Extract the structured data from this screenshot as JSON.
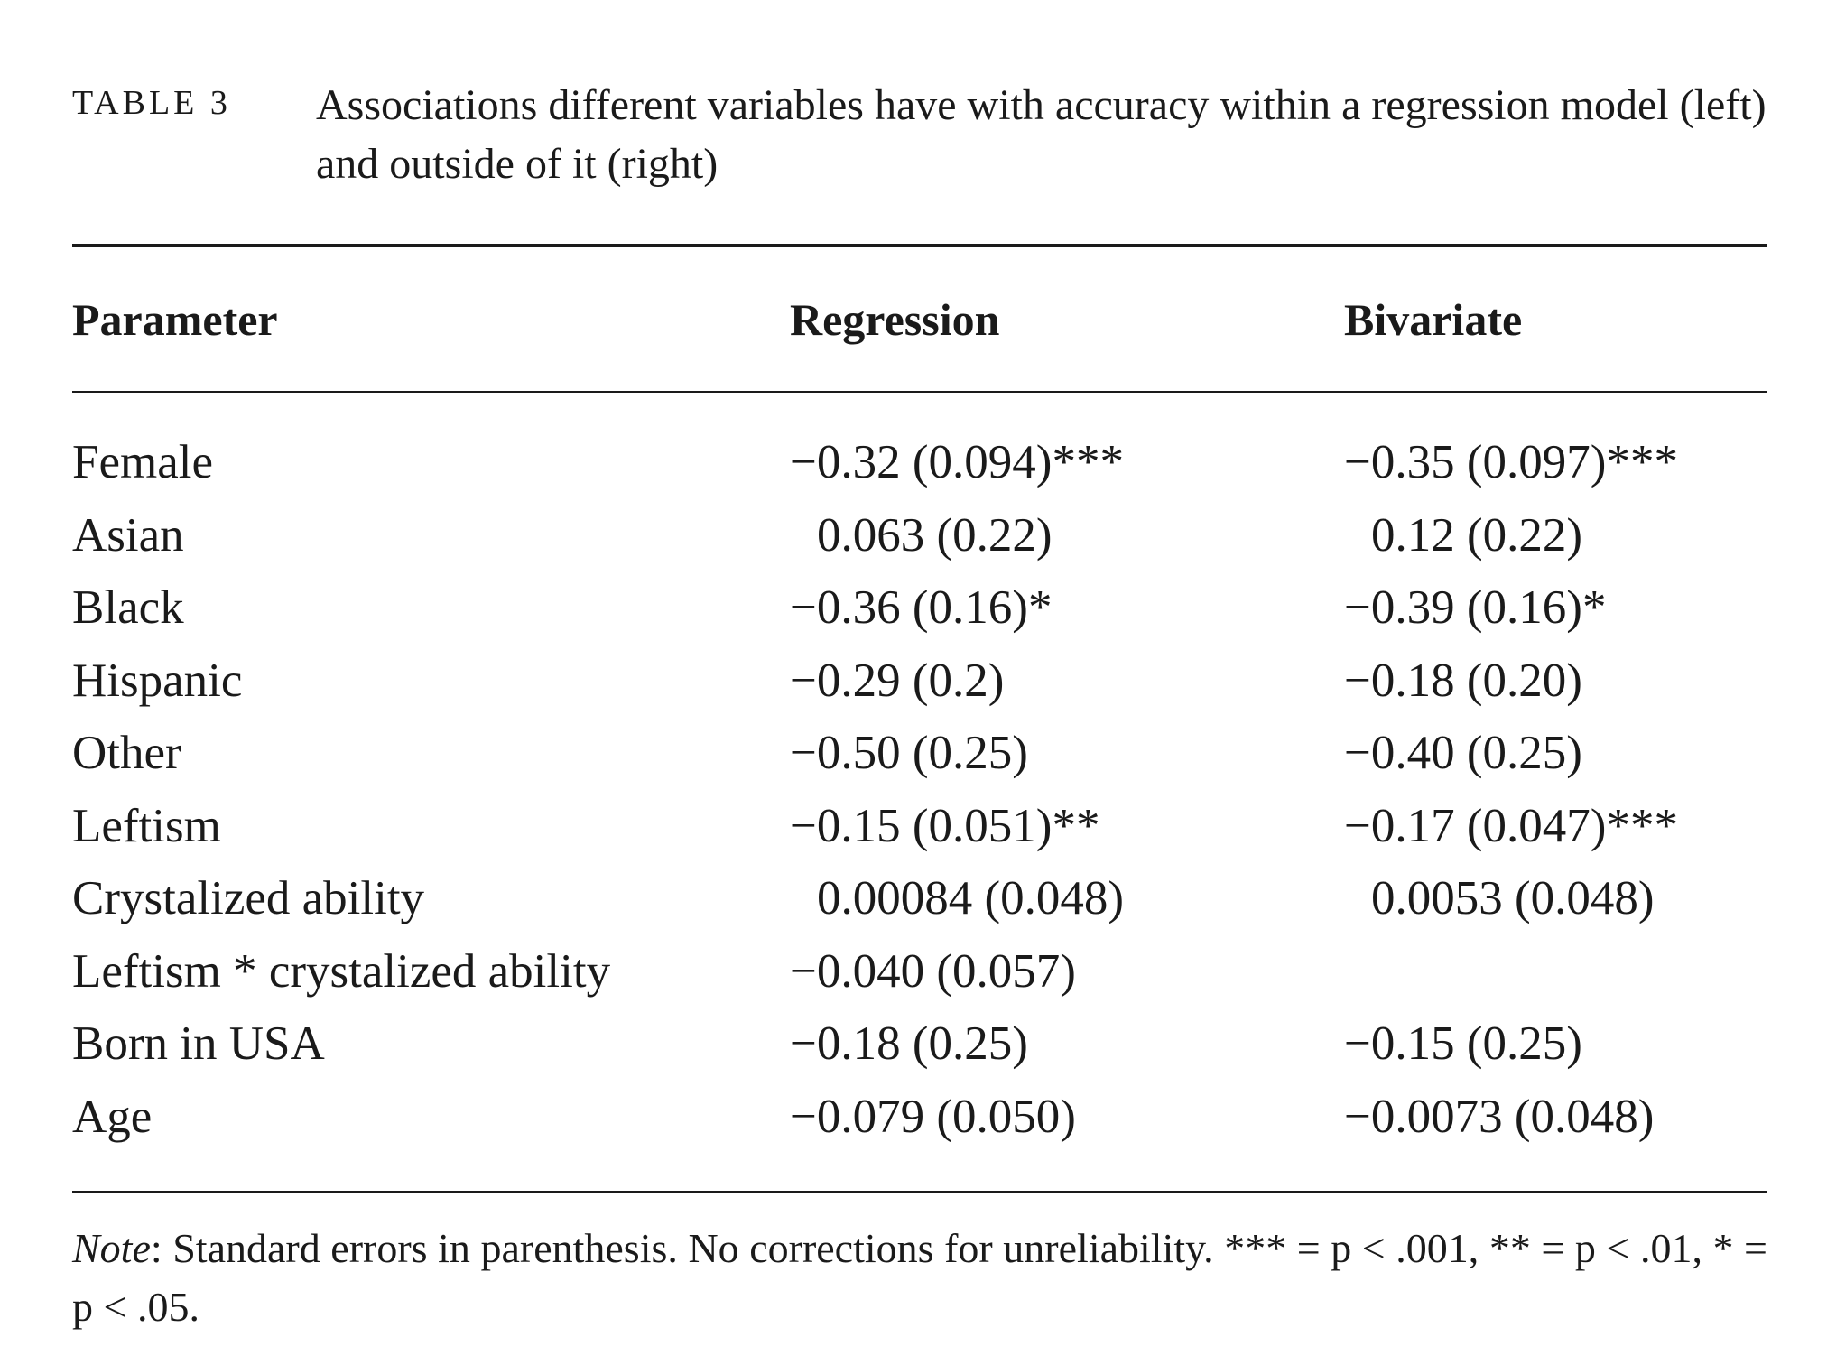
{
  "caption": {
    "label": "TABLE 3",
    "text": "Associations different variables have with accuracy within a regression model (left) and outside of it (right)"
  },
  "table": {
    "header": [
      "Parameter",
      "Regression",
      "Bivariate"
    ],
    "rows": [
      [
        "Female",
        "−0.32 (0.094)***",
        "−0.35 (0.097)***"
      ],
      [
        "Asian",
        "0.063 (0.22)",
        "0.12 (0.22)"
      ],
      [
        "Black",
        "−0.36 (0.16)*",
        "−0.39 (0.16)*"
      ],
      [
        "Hispanic",
        "−0.29 (0.2)",
        "−0.18 (0.20)"
      ],
      [
        "Other",
        "−0.50 (0.25)",
        "−0.40 (0.25)"
      ],
      [
        "Leftism",
        "−0.15 (0.051)**",
        "−0.17 (0.047)***"
      ],
      [
        "Crystalized ability",
        "0.00084 (0.048)",
        "0.0053 (0.048)"
      ],
      [
        "Leftism * crystalized ability",
        "−0.040 (0.057)",
        null
      ],
      [
        "Born in USA",
        "−0.18 (0.25)",
        "−0.15 (0.25)"
      ],
      [
        "Age",
        "−0.079 (0.050)",
        "−0.0073 (0.048)"
      ]
    ]
  },
  "note": {
    "label": "Note",
    "text": ": Standard errors in parenthesis. No corrections for unreliability. *** = p < .001, ** = p < .01, * = p < .05."
  }
}
